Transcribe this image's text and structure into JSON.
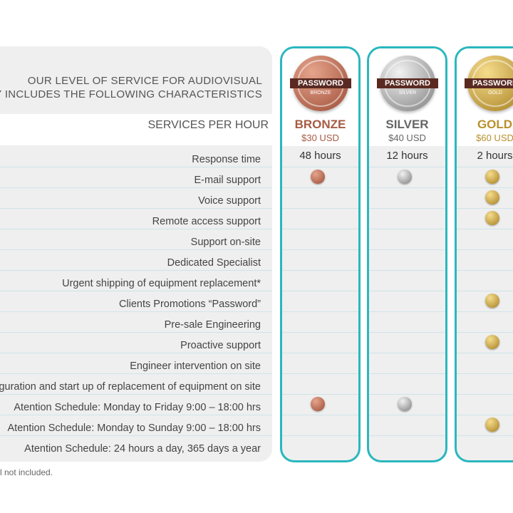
{
  "header": {
    "title_lines": [
      "OUR LEVEL OF SERVICE FOR AUDIOVISUAL",
      "OGY INCLUDES THE FOLLOWING CHARACTERISTICS"
    ],
    "services_label": "SERVICES PER HOUR"
  },
  "plans": [
    {
      "name": "BRONZE",
      "price": "$30 USD",
      "badge_brand": "PASSWORD",
      "badge_level": "BRONZE",
      "color": "#a65a43"
    },
    {
      "name": "SILVER",
      "price": "$40 USD",
      "badge_brand": "PASSWORD",
      "badge_level": "SILVER",
      "color": "#666666"
    },
    {
      "name": "GOLD",
      "price": "$60 USD",
      "badge_brand": "PASSWORD",
      "badge_level": "GOLD",
      "color": "#b8902c"
    }
  ],
  "rows": [
    {
      "feature": "Response time",
      "texts": [
        "48 hours",
        "12 hours",
        "2 hours"
      ]
    },
    {
      "feature": "E-mail support",
      "included": [
        true,
        true,
        true
      ]
    },
    {
      "feature": "Voice support",
      "included": [
        false,
        false,
        true
      ]
    },
    {
      "feature": "Remote access support",
      "included": [
        false,
        false,
        true
      ]
    },
    {
      "feature": "Support on-site",
      "included": [
        false,
        false,
        false
      ]
    },
    {
      "feature": "Dedicated Specialist",
      "included": [
        false,
        false,
        false
      ]
    },
    {
      "feature": "Urgent shipping of equipment replacement*",
      "included": [
        false,
        false,
        false
      ]
    },
    {
      "feature": "Clients Promotions “Password”",
      "included": [
        false,
        false,
        true
      ]
    },
    {
      "feature": "Pre-sale Engineering",
      "included": [
        false,
        false,
        false
      ]
    },
    {
      "feature": "Proactive support",
      "included": [
        false,
        false,
        true
      ]
    },
    {
      "feature": "Engineer intervention on site",
      "included": [
        false,
        false,
        false
      ]
    },
    {
      "feature": "guration and start up of  replacement of equipment on site",
      "included": [
        false,
        false,
        false
      ]
    },
    {
      "feature": "Atention Schedule: Monday to Friday 9:00 – 18:00 hrs",
      "included": [
        true,
        true,
        false
      ]
    },
    {
      "feature": "Atention Schedule: Monday to Sunday 9:00 – 18:00 hrs",
      "included": [
        false,
        false,
        true
      ]
    },
    {
      "feature": "Atention Schedule: 24 hours a day, 365 days a year",
      "included": [
        false,
        false,
        false
      ]
    }
  ],
  "footnote": "l not included."
}
